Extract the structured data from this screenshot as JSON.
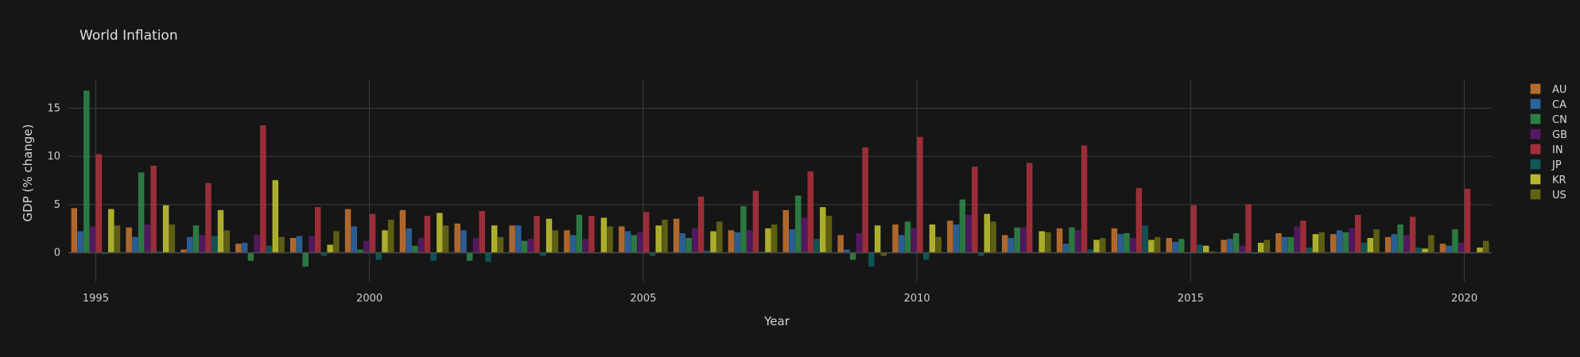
{
  "chart_data": {
    "type": "bar",
    "title": "World Inflation",
    "xlabel": "Year",
    "ylabel": "GDP (% change)",
    "x": [
      1995,
      1996,
      1997,
      1998,
      1999,
      2000,
      2001,
      2002,
      2003,
      2004,
      2005,
      2006,
      2007,
      2008,
      2009,
      2010,
      2011,
      2012,
      2013,
      2014,
      2015,
      2016,
      2017,
      2018,
      2019,
      2020
    ],
    "xlim": [
      1994.5,
      2020.5
    ],
    "ylim": [
      -3,
      18
    ],
    "xticks": [
      1995,
      2000,
      2005,
      2010,
      2015,
      2020
    ],
    "yticks": [
      0,
      5,
      10,
      15
    ],
    "grid": true,
    "legend_position": "right",
    "series": [
      {
        "name": "AU",
        "color": "#c87630",
        "values": [
          4.6,
          2.6,
          0.3,
          0.9,
          1.5,
          4.5,
          4.4,
          3.0,
          2.8,
          2.3,
          2.7,
          3.5,
          2.3,
          4.4,
          1.8,
          2.9,
          3.3,
          1.8,
          2.5,
          2.5,
          1.5,
          1.3,
          2.0,
          1.9,
          1.6,
          0.9
        ]
      },
      {
        "name": "CA",
        "color": "#2f6aa8",
        "values": [
          2.2,
          1.6,
          1.6,
          1.0,
          1.7,
          2.7,
          2.5,
          2.3,
          2.8,
          1.8,
          2.2,
          2.0,
          2.1,
          2.4,
          0.3,
          1.8,
          2.9,
          1.5,
          0.9,
          1.9,
          1.1,
          1.4,
          1.6,
          2.3,
          1.9,
          0.7
        ]
      },
      {
        "name": "CN",
        "color": "#2f8a4a",
        "values": [
          16.8,
          8.3,
          2.8,
          -0.8,
          -1.4,
          0.3,
          0.7,
          -0.8,
          1.2,
          3.9,
          1.8,
          1.5,
          4.8,
          5.9,
          -0.7,
          3.2,
          5.5,
          2.6,
          2.6,
          2.0,
          1.4,
          2.0,
          1.6,
          2.1,
          2.9,
          2.4
        ]
      },
      {
        "name": "GB",
        "color": "#5c1a6a",
        "values": [
          2.7,
          2.9,
          1.8,
          1.8,
          1.7,
          1.2,
          1.5,
          1.5,
          1.4,
          1.4,
          2.1,
          2.5,
          2.3,
          3.6,
          2.0,
          2.5,
          3.9,
          2.6,
          2.3,
          1.5,
          0.0,
          0.7,
          2.7,
          2.5,
          1.8,
          1.0
        ]
      },
      {
        "name": "IN",
        "color": "#b0333f",
        "values": [
          10.2,
          9.0,
          7.2,
          13.2,
          4.7,
          4.0,
          3.8,
          4.3,
          3.8,
          3.8,
          4.2,
          5.8,
          6.4,
          8.4,
          10.9,
          12.0,
          8.9,
          9.3,
          11.1,
          6.7,
          4.9,
          5.0,
          3.3,
          3.9,
          3.7,
          6.6
        ]
      },
      {
        "name": "JP",
        "color": "#0f5e60",
        "values": [
          -0.1,
          0.1,
          1.7,
          0.7,
          -0.3,
          -0.7,
          -0.8,
          -0.9,
          -0.3,
          0.0,
          -0.3,
          0.2,
          0.1,
          1.4,
          -1.4,
          -0.7,
          -0.3,
          0.0,
          0.3,
          2.8,
          0.8,
          -0.1,
          0.5,
          1.0,
          0.5,
          0.0
        ]
      },
      {
        "name": "KR",
        "color": "#c6c830",
        "values": [
          4.5,
          4.9,
          4.4,
          7.5,
          0.8,
          2.3,
          4.1,
          2.8,
          3.5,
          3.6,
          2.8,
          2.2,
          2.5,
          4.7,
          2.8,
          2.9,
          4.0,
          2.2,
          1.3,
          1.3,
          0.7,
          1.0,
          1.9,
          1.5,
          0.4,
          0.5
        ]
      },
      {
        "name": "US",
        "color": "#6a6a14",
        "values": [
          2.8,
          2.9,
          2.3,
          1.6,
          2.2,
          3.4,
          2.8,
          1.6,
          2.3,
          2.7,
          3.4,
          3.2,
          2.9,
          3.8,
          -0.3,
          1.6,
          3.2,
          2.1,
          1.5,
          1.6,
          0.1,
          1.3,
          2.1,
          2.4,
          1.8,
          1.2
        ]
      }
    ]
  }
}
